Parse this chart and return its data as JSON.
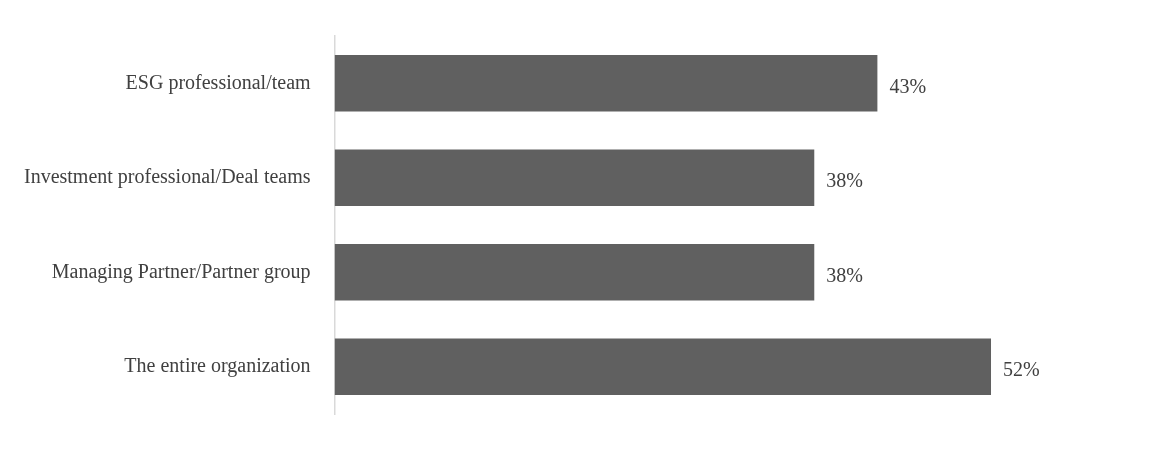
{
  "chart_data": {
    "type": "bar",
    "orientation": "horizontal",
    "categories": [
      "ESG professional/team",
      "Investment professional/Deal teams",
      "Managing Partner/Partner group",
      "The entire organization"
    ],
    "values": [
      43,
      38,
      38,
      52
    ],
    "value_labels": [
      "43%",
      "38%",
      "38%",
      "52%"
    ],
    "color": "#606060",
    "legend": false
  }
}
